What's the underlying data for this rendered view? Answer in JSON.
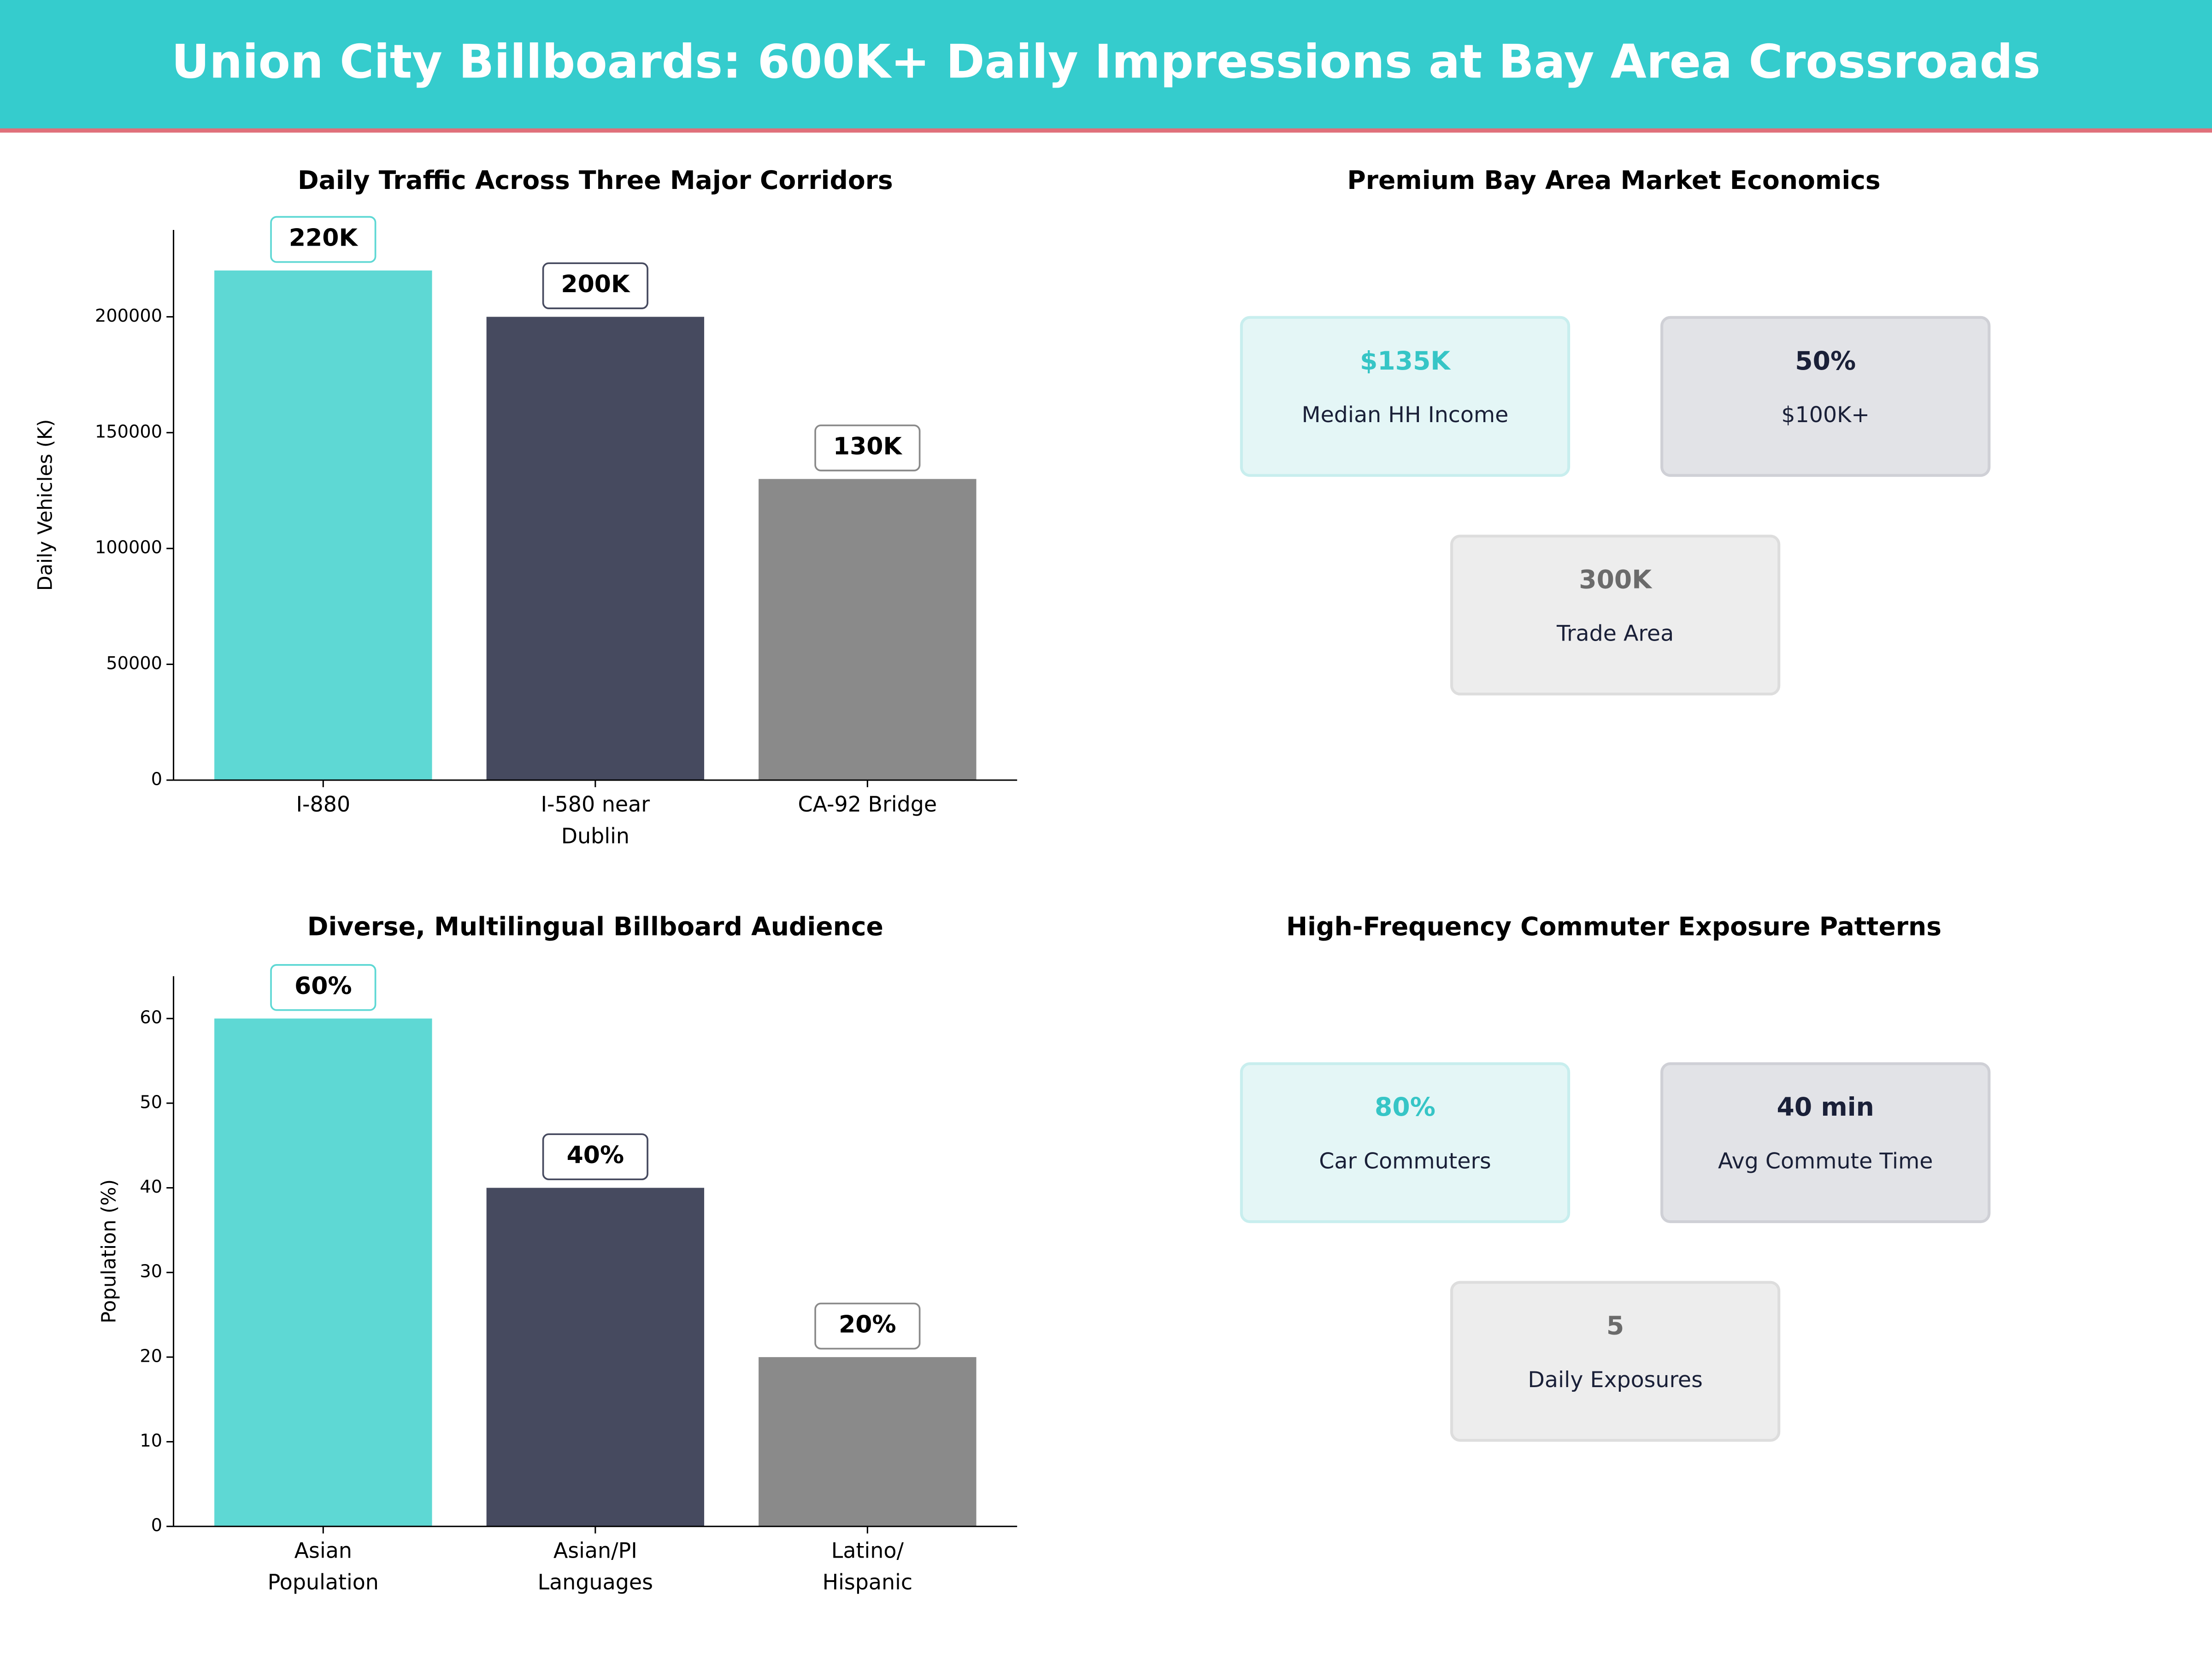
{
  "header": {
    "title": "Union City Billboards: 600K+ Daily Impressions at Bay Area Crossroads"
  },
  "chart_data": [
    {
      "type": "bar",
      "title": "Daily Traffic Across Three Major Corridors",
      "y_label": "Daily Vehicles (K)",
      "categories": [
        "I-880",
        "I-580 near\nDublin",
        "CA-92 Bridge"
      ],
      "values": [
        220000,
        200000,
        130000
      ],
      "value_labels": [
        "220K",
        "200K",
        "130K"
      ],
      "colors": [
        "#5ed8d4",
        "#464a5f",
        "#8a8a8a"
      ],
      "ylim": [
        0,
        237500
      ],
      "yticks": [
        0,
        50000,
        100000,
        150000,
        200000
      ]
    },
    {
      "type": "bar",
      "title": "Diverse, Multilingual Billboard Audience",
      "y_label": "Population (%)",
      "categories": [
        "Asian\nPopulation",
        "Asian/PI\nLanguages",
        "Latino/\nHispanic"
      ],
      "values": [
        60,
        40,
        20
      ],
      "value_labels": [
        "60%",
        "40%",
        "20%"
      ],
      "colors": [
        "#5ed8d4",
        "#464a5f",
        "#8a8a8a"
      ],
      "ylim": [
        0,
        65
      ],
      "yticks": [
        0,
        10,
        20,
        30,
        40,
        50,
        60
      ]
    }
  ],
  "kpi_panels": [
    {
      "title": "Premium Bay Area Market Economics",
      "cards": [
        {
          "value": "$135K",
          "label": "Median HH Income"
        },
        {
          "value": "50%",
          "label": "$100K+"
        },
        {
          "value": "300K",
          "label": "Trade Area"
        }
      ]
    },
    {
      "title": "High-Frequency Commuter Exposure Patterns",
      "cards": [
        {
          "value": "80%",
          "label": "Car Commuters"
        },
        {
          "value": "40 min",
          "label": "Avg Commute Time"
        },
        {
          "value": "5",
          "label": "Daily Exposures"
        }
      ]
    }
  ]
}
